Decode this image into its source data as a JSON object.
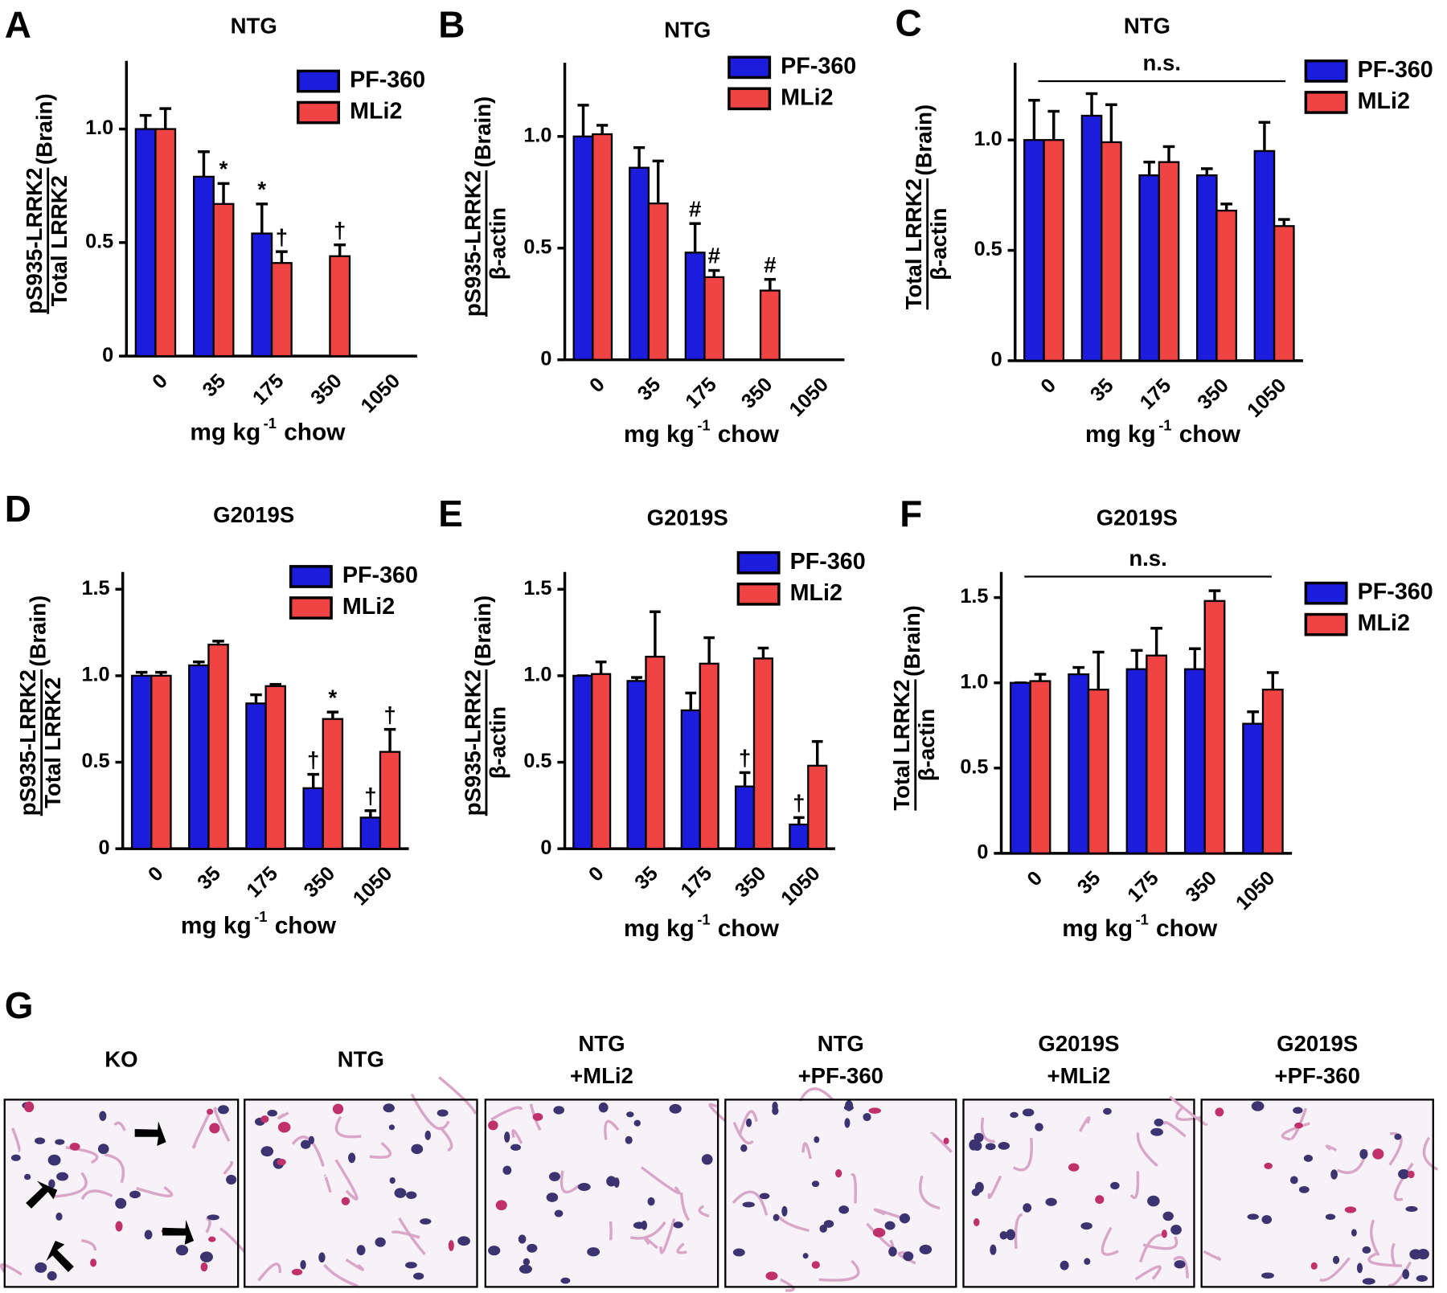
{
  "chart_data": [
    {
      "type": "bar",
      "panel": "A",
      "title": "NTG",
      "categories": [
        "0",
        "35",
        "175",
        "350",
        "1050"
      ],
      "series": [
        {
          "name": "PF-360",
          "color": "#1c1cdc",
          "values": [
            1.0,
            0.79,
            0.54,
            null,
            null
          ],
          "errors": [
            0.06,
            0.11,
            0.13,
            null,
            null
          ],
          "annotations": [
            null,
            null,
            "*",
            null,
            null
          ]
        },
        {
          "name": "MLi2",
          "color": "#f04444",
          "values": [
            1.0,
            0.67,
            0.41,
            0.44,
            null
          ],
          "errors": [
            0.09,
            0.09,
            0.05,
            0.05,
            null
          ],
          "annotations": [
            null,
            "*",
            "†",
            "†",
            null
          ]
        }
      ],
      "ylim": [
        0,
        1.3
      ],
      "yticks": [
        0,
        0.5,
        {
          "value": 1,
          "label": "1.0"
        }
      ],
      "ylabel": {
        "numerator": "pS935-LRRK2",
        "denominator": "Total LRRK2",
        "subscript": "(Brain)"
      },
      "xlabel": {
        "base": "mg kg",
        "sup": "-1",
        "rest": "chow"
      },
      "legend": "upper right"
    },
    {
      "type": "bar",
      "panel": "B",
      "title": "NTG",
      "categories": [
        "0",
        "35",
        "175",
        "350",
        "1050"
      ],
      "series": [
        {
          "name": "PF-360",
          "color": "#1c1cdc",
          "values": [
            1.0,
            0.86,
            0.48,
            null,
            null
          ],
          "errors": [
            0.14,
            0.09,
            0.13,
            null,
            null
          ],
          "annotations": [
            null,
            null,
            "#",
            null,
            null
          ]
        },
        {
          "name": "MLi2",
          "color": "#f04444",
          "values": [
            1.01,
            0.7,
            0.37,
            0.31,
            null
          ],
          "errors": [
            0.04,
            0.19,
            0.03,
            0.05,
            null
          ],
          "annotations": [
            null,
            null,
            "#",
            "#",
            null
          ]
        }
      ],
      "ylim": [
        0,
        1.33
      ],
      "yticks": [
        0,
        0.5,
        {
          "value": 1,
          "label": "1.0"
        }
      ],
      "ylabel": {
        "numerator": "pS935-LRRK2",
        "denominator": "β-actin",
        "subscript": "(Brain)"
      },
      "xlabel": {
        "base": "mg kg",
        "sup": "-1",
        "rest": "chow"
      },
      "legend": "upper right"
    },
    {
      "type": "bar",
      "panel": "C",
      "title": "NTG",
      "categories": [
        "0",
        "35",
        "175",
        "350",
        "1050"
      ],
      "series": [
        {
          "name": "PF-360",
          "color": "#1c1cdc",
          "values": [
            1.0,
            1.11,
            0.84,
            0.84,
            0.95
          ],
          "errors": [
            0.18,
            0.1,
            0.06,
            0.03,
            0.13
          ],
          "annotations": [
            null,
            null,
            null,
            null,
            null
          ]
        },
        {
          "name": "MLi2",
          "color": "#f04444",
          "values": [
            1.0,
            0.99,
            0.9,
            0.68,
            0.61
          ],
          "errors": [
            0.13,
            0.17,
            0.07,
            0.03,
            0.03
          ],
          "annotations": [
            null,
            null,
            null,
            null,
            null
          ]
        }
      ],
      "ylim": [
        0,
        1.35
      ],
      "yticks": [
        0,
        0.5,
        {
          "value": 1,
          "label": "1.0"
        }
      ],
      "ylabel": {
        "numerator": "Total LRRK2",
        "denominator": "β-actin",
        "subscript": "(Brain)"
      },
      "xlabel": {
        "base": "mg kg",
        "sup": "-1",
        "rest": "chow"
      },
      "legend": "upper right",
      "bracket_label": "n.s."
    },
    {
      "type": "bar",
      "panel": "D",
      "title": "G2019S",
      "categories": [
        "0",
        "35",
        "175",
        "350",
        "1050"
      ],
      "series": [
        {
          "name": "PF-360",
          "color": "#1c1cdc",
          "values": [
            1.0,
            1.06,
            0.84,
            0.35,
            0.18
          ],
          "errors": [
            0.02,
            0.02,
            0.05,
            0.08,
            0.04
          ],
          "annotations": [
            null,
            null,
            null,
            "†",
            "†"
          ]
        },
        {
          "name": "MLi2",
          "color": "#f04444",
          "values": [
            1.0,
            1.18,
            0.94,
            0.75,
            0.56
          ],
          "errors": [
            0.02,
            0.02,
            0.01,
            0.04,
            0.13
          ],
          "annotations": [
            null,
            null,
            null,
            "*",
            "†"
          ]
        }
      ],
      "ylim": [
        0,
        1.6
      ],
      "yticks": [
        0,
        0.5,
        {
          "value": 1,
          "label": "1.0"
        },
        1.5
      ],
      "ylabel": {
        "numerator": "pS935-LRRK2",
        "denominator": "Total LRRK2",
        "subscript": "(Brain)"
      },
      "xlabel": {
        "base": "mg kg",
        "sup": "-1",
        "rest": "chow"
      },
      "legend": "upper right"
    },
    {
      "type": "bar",
      "panel": "E",
      "title": "G2019S",
      "categories": [
        "0",
        "35",
        "175",
        "350",
        "1050"
      ],
      "series": [
        {
          "name": "PF-360",
          "color": "#1c1cdc",
          "values": [
            1.0,
            0.97,
            0.8,
            0.36,
            0.14
          ],
          "errors": [
            0,
            0.02,
            0.1,
            0.08,
            0.04
          ],
          "annotations": [
            null,
            null,
            null,
            "†",
            "†"
          ]
        },
        {
          "name": "MLi2",
          "color": "#f04444",
          "values": [
            1.01,
            1.11,
            1.07,
            1.1,
            0.48
          ],
          "errors": [
            0.07,
            0.26,
            0.15,
            0.06,
            0.14
          ],
          "annotations": [
            null,
            null,
            null,
            null,
            null
          ]
        }
      ],
      "ylim": [
        0,
        1.6
      ],
      "yticks": [
        0,
        0.5,
        {
          "value": 1,
          "label": "1.0"
        },
        1.5
      ],
      "ylabel": {
        "numerator": "pS935-LRRK2",
        "denominator": "β-actin",
        "subscript": "(Brain)"
      },
      "xlabel": {
        "base": "mg kg",
        "sup": "-1",
        "rest": "chow"
      },
      "legend": "upper right"
    },
    {
      "type": "bar",
      "panel": "F",
      "title": "G2019S",
      "categories": [
        "0",
        "35",
        "175",
        "350",
        "1050"
      ],
      "series": [
        {
          "name": "PF-360",
          "color": "#1c1cdc",
          "values": [
            1.0,
            1.05,
            1.08,
            1.08,
            0.76
          ],
          "errors": [
            0,
            0.04,
            0.11,
            0.12,
            0.07
          ],
          "annotations": [
            null,
            null,
            null,
            null,
            null
          ]
        },
        {
          "name": "MLi2",
          "color": "#f04444",
          "values": [
            1.01,
            0.96,
            1.16,
            1.48,
            0.96
          ],
          "errors": [
            0.04,
            0.22,
            0.16,
            0.06,
            0.1
          ],
          "annotations": [
            null,
            null,
            null,
            null,
            null
          ]
        }
      ],
      "ylim": [
        0,
        1.65
      ],
      "yticks": [
        0,
        0.5,
        {
          "value": 1,
          "label": "1.0"
        },
        1.5
      ],
      "ylabel": {
        "numerator": "Total LRRK2",
        "denominator": "β-actin",
        "subscript": "(Brain)"
      },
      "xlabel": {
        "base": "mg kg",
        "sup": "-1",
        "rest": "chow"
      },
      "legend": "upper right",
      "bracket_label": "n.s."
    }
  ],
  "image_panel": {
    "panel": "G",
    "labels": [
      [
        "KO"
      ],
      [
        "NTG"
      ],
      [
        "NTG",
        "+MLi2"
      ],
      [
        "NTG",
        "+PF-360"
      ],
      [
        "G2019S",
        "+MLi2"
      ],
      [
        "G2019S",
        "+PF-360"
      ]
    ]
  }
}
